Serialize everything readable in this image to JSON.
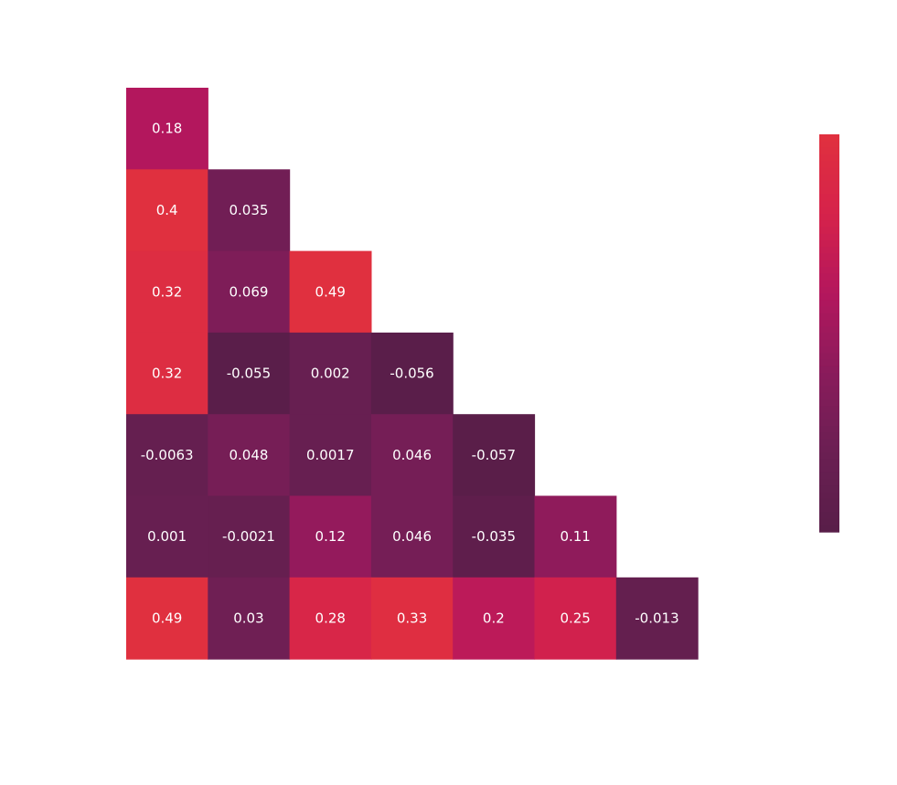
{
  "chart_data": {
    "type": "heatmap",
    "mask": "upper-triangle",
    "title": "",
    "xlabel": "",
    "ylabel": "",
    "rows": [
      [
        0.18
      ],
      [
        0.4,
        0.035
      ],
      [
        0.32,
        0.069,
        0.49
      ],
      [
        0.32,
        -0.055,
        0.002,
        -0.056
      ],
      [
        -0.0063,
        0.048,
        0.0017,
        0.046,
        -0.057
      ],
      [
        0.001,
        -0.0021,
        0.12,
        0.046,
        -0.035,
        0.11
      ],
      [
        0.49,
        0.03,
        0.28,
        0.33,
        0.2,
        0.25,
        -0.013
      ]
    ],
    "labels": [
      [
        "0.18"
      ],
      [
        "0.4",
        "0.035"
      ],
      [
        "0.32",
        "0.069",
        "0.49"
      ],
      [
        "0.32",
        "-0.055",
        "0.002",
        "-0.056"
      ],
      [
        "-0.0063",
        "0.048",
        "0.0017",
        "0.046",
        "-0.057"
      ],
      [
        "0.001",
        "-0.0021",
        "0.12",
        "0.046",
        "-0.035",
        "0.11"
      ],
      [
        "0.49",
        "0.03",
        "0.28",
        "0.33",
        "0.2",
        "0.25",
        "-0.013"
      ]
    ],
    "color_range": [
      -0.06,
      0.34
    ],
    "colormap": [
      "#591e49",
      "#6b1f53",
      "#8a1b5b",
      "#b3175d",
      "#d5224b",
      "#e0303f"
    ],
    "colorbar": "right",
    "grid": false
  }
}
